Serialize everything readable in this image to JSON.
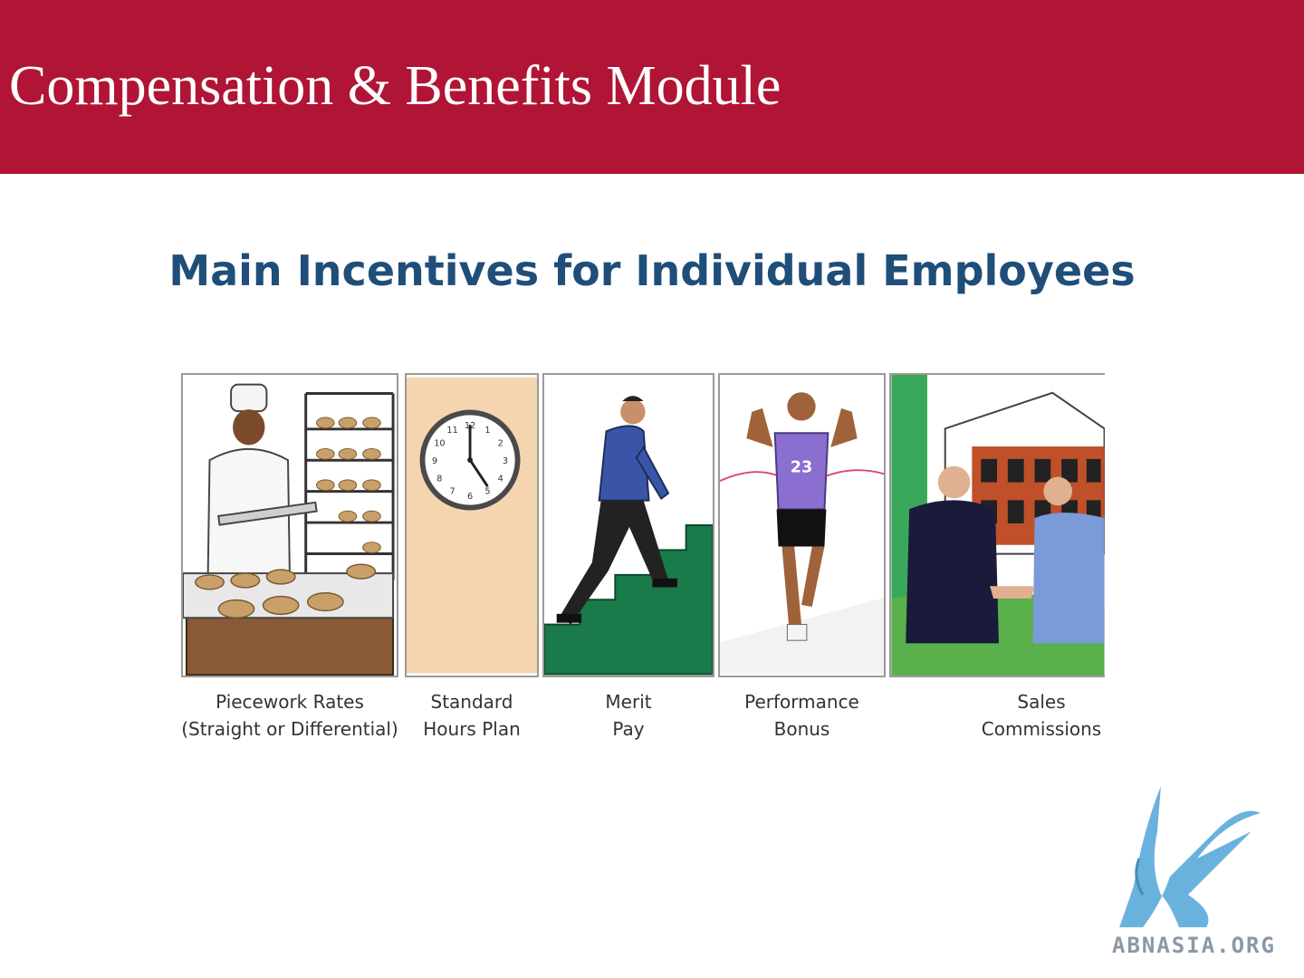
{
  "header": {
    "title": "Compensation & Benefits Module",
    "background_color": "#b01535"
  },
  "subtitle": "Main Incentives for Individual Employees",
  "incentives": [
    {
      "line1": "Piecework Rates",
      "line2": "(Straight or Differential)",
      "illustration": "baker-with-bread-trays"
    },
    {
      "line1": "Standard",
      "line2": "Hours Plan",
      "illustration": "wall-clock"
    },
    {
      "line1": "Merit",
      "line2": "Pay",
      "illustration": "man-climbing-stairs"
    },
    {
      "line1": "Performance",
      "line2": "Bonus",
      "illustration": "runner-breaking-finish-tape"
    },
    {
      "line1": "Sales",
      "line2": "Commissions",
      "illustration": "handshake-in-front-of-building"
    }
  ],
  "clock_numbers": [
    "12",
    "1",
    "2",
    "3",
    "4",
    "5",
    "6",
    "7",
    "8",
    "9",
    "10",
    "11"
  ],
  "runner_bib": "23",
  "logo": {
    "text": "ABNASIA.ORG",
    "icon": "griffin-logo-icon"
  }
}
